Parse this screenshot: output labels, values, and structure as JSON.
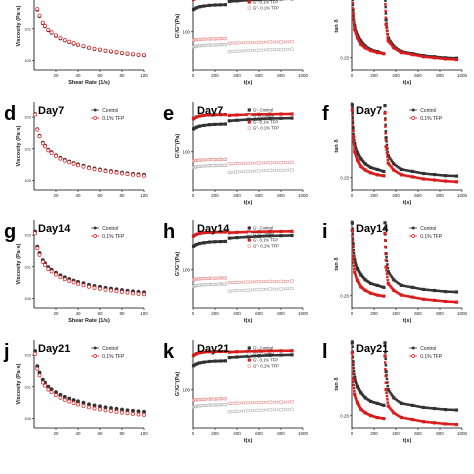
{
  "colors": {
    "control": "#333333",
    "tfp": "#d91c1c",
    "gpp_control": "#bbbbbb",
    "gpp_tfp": "#e89a9a"
  },
  "legend_tan": {
    "control": "Control",
    "tfp": "0.1% TFP"
  },
  "legend_modulus": {
    "gp_control": "G'- Control",
    "gpp_control": "G''- Control",
    "gp_tfp": "G'- 0.1% TFP",
    "gpp_tfp": "G''- 0.1% TFP"
  },
  "axis_text": {
    "viscosity_ylabel": "Viscosity (Pa·s)",
    "shear_xlabel": "Shear Rate (1/s)",
    "modulus_ylabel": "G'/G''(Pa)",
    "time_xlabel": "t(s)",
    "tan_ylabel": "tan δ"
  },
  "rows": [
    {
      "day": "",
      "letters": [
        "a",
        "b",
        "c"
      ],
      "show_xlabels": true
    },
    {
      "day": "Day7",
      "letters": [
        "d",
        "e",
        "f"
      ],
      "show_xlabels": false
    },
    {
      "day": "Day14",
      "letters": [
        "g",
        "h",
        "i"
      ],
      "show_xlabels": true
    },
    {
      "day": "Day21",
      "letters": [
        "j",
        "k",
        "l"
      ],
      "show_xlabels": false
    }
  ],
  "chart_data": [
    {
      "type": "scatter",
      "panel": "viscosity",
      "xlabel": "Shear Rate (1/s)",
      "ylabel": "Viscosity (Pa·s)",
      "xlim": [
        0,
        100
      ],
      "yscale": "log",
      "ylim": [
        0.5,
        300
      ],
      "xticks": [
        20,
        40,
        60,
        80,
        100
      ],
      "series": [
        {
          "name": "Control",
          "x": [
            1,
            3,
            5,
            8,
            10,
            13,
            16,
            20,
            24,
            28,
            32,
            36,
            40,
            45,
            50,
            55,
            60,
            65,
            70,
            75,
            80,
            85,
            90,
            95,
            100
          ],
          "y": [
            120,
            40,
            25,
            15,
            12,
            9,
            7.5,
            6,
            5,
            4.3,
            3.8,
            3.4,
            3.1,
            2.8,
            2.5,
            2.3,
            2.15,
            2.0,
            1.9,
            1.8,
            1.7,
            1.62,
            1.55,
            1.5,
            1.45
          ]
        },
        {
          "name": "0.1% TFP",
          "x": [
            1,
            3,
            5,
            8,
            10,
            13,
            16,
            20,
            24,
            28,
            32,
            36,
            40,
            45,
            50,
            55,
            60,
            65,
            70,
            75,
            80,
            85,
            90,
            95,
            100
          ],
          "y": [
            125,
            42,
            26,
            15.5,
            12.4,
            9.3,
            7.7,
            6.2,
            5.1,
            4.4,
            3.9,
            3.5,
            3.15,
            2.85,
            2.55,
            2.35,
            2.2,
            2.05,
            1.95,
            1.84,
            1.74,
            1.66,
            1.58,
            1.52,
            1.47
          ]
        }
      ]
    },
    {
      "type": "scatter",
      "panel": "modulus",
      "xlabel": "t(s)",
      "ylabel": "G'/G''(Pa)",
      "xlim": [
        0,
        1000
      ],
      "yscale": "log",
      "ylim": [
        10,
        2000
      ],
      "xticks": [
        0,
        200,
        400,
        600,
        800,
        1000
      ],
      "ytick_labels": [
        "100"
      ],
      "series": [
        {
          "name": "G'- Control",
          "x": [
            5,
            30,
            60,
            100,
            150,
            200,
            250,
            295,
            330,
            400,
            500,
            600,
            700,
            800,
            900
          ],
          "y": [
            380,
            420,
            450,
            470,
            490,
            500,
            505,
            510,
            620,
            640,
            670,
            690,
            710,
            720,
            730
          ]
        },
        {
          "name": "G''- Control",
          "x": [
            5,
            30,
            60,
            100,
            150,
            200,
            250,
            295,
            330,
            400,
            500,
            600,
            700,
            800,
            900
          ],
          "y": [
            40,
            42,
            43,
            44,
            45,
            45,
            46,
            46,
            30,
            31,
            32,
            33,
            34,
            34,
            35
          ]
        },
        {
          "name": "G'- 0.1% TFP",
          "x": [
            5,
            30,
            60,
            100,
            150,
            200,
            250,
            295,
            330,
            400,
            500,
            600,
            700,
            800,
            900
          ],
          "y": [
            700,
            780,
            830,
            860,
            880,
            890,
            895,
            900,
            860,
            880,
            900,
            915,
            925,
            930,
            935
          ]
        },
        {
          "name": "G''- 0.1% TFP",
          "x": [
            5,
            30,
            60,
            100,
            150,
            200,
            250,
            295,
            330,
            400,
            500,
            600,
            700,
            800,
            900
          ],
          "y": [
            60,
            62,
            63,
            64,
            65,
            65,
            66,
            66,
            50,
            51,
            52,
            53,
            54,
            54,
            55
          ]
        }
      ]
    },
    {
      "type": "scatter",
      "panel": "tan",
      "xlabel": "t(s)",
      "ylabel": "tan δ",
      "xlim": [
        0,
        1000
      ],
      "yscale": "log",
      "ylim": [
        0.2,
        1
      ],
      "xticks": [
        0,
        200,
        400,
        600,
        800,
        1000
      ],
      "ytick_labels": [
        "0.25"
      ],
      "series": [
        {
          "name": "Control",
          "x": [
            3,
            10,
            25,
            50,
            80,
            120,
            170,
            230,
            290,
            300,
            310,
            330,
            380,
            450,
            550,
            650,
            750,
            850,
            950
          ],
          "y": [
            0.95,
            0.6,
            0.45,
            0.38,
            0.34,
            0.31,
            0.29,
            0.28,
            0.27,
            0.9,
            0.5,
            0.36,
            0.31,
            0.28,
            0.27,
            0.26,
            0.255,
            0.25,
            0.248
          ]
        },
        {
          "name": "0.1% TFP",
          "x": [
            3,
            10,
            25,
            50,
            80,
            120,
            170,
            230,
            290,
            300,
            310,
            330,
            380,
            450,
            550,
            650,
            750,
            850,
            950
          ],
          "y": [
            0.9,
            0.56,
            0.42,
            0.36,
            0.32,
            0.3,
            0.285,
            0.275,
            0.27,
            0.85,
            0.46,
            0.34,
            0.3,
            0.275,
            0.265,
            0.255,
            0.25,
            0.245,
            0.242
          ]
        }
      ]
    }
  ]
}
